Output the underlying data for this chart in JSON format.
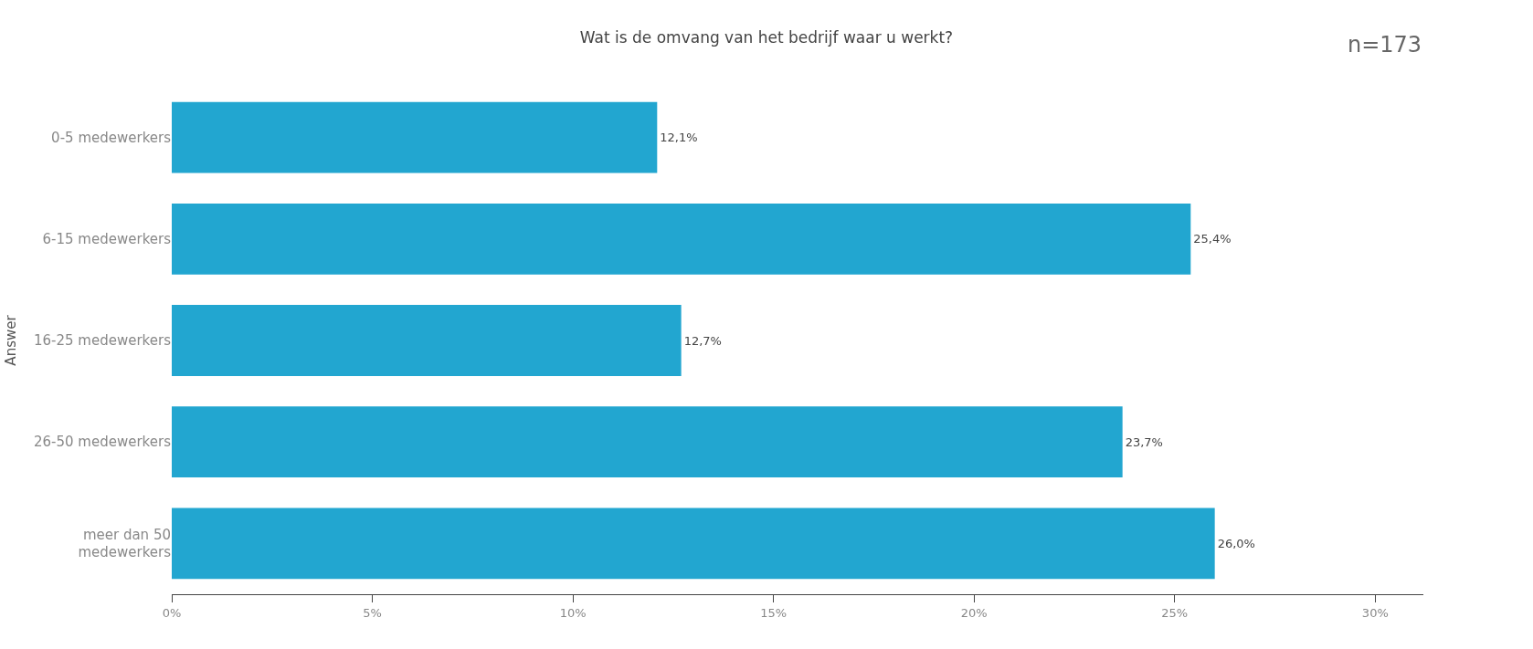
{
  "chart_data": {
    "type": "bar",
    "orientation": "horizontal",
    "title": "Wat is de omvang van het bedrijf waar u werkt?",
    "ylabel": "Answer",
    "categories": [
      "0-5 medewerkers",
      "6-15 medewerkers",
      "16-25 medewerkers",
      "26-50 medewerkers",
      "meer dan 50 medewerkers"
    ],
    "values": [
      12.1,
      25.4,
      12.7,
      23.7,
      26.0
    ],
    "value_labels": [
      "12,1%",
      "25,4%",
      "12,7%",
      "23,7%",
      "26,0%"
    ],
    "color": "#22a6d0",
    "xlim": [
      0,
      31.2
    ],
    "xticks": [
      {
        "value": 0,
        "label": "0%"
      },
      {
        "value": 5,
        "label": "5%"
      },
      {
        "value": 10,
        "label": "10%"
      },
      {
        "value": 15,
        "label": "15%"
      },
      {
        "value": 20,
        "label": "20%"
      },
      {
        "value": 25,
        "label": "25%"
      },
      {
        "value": 30,
        "label": "30%"
      }
    ],
    "annotations": [
      "n=173"
    ]
  }
}
